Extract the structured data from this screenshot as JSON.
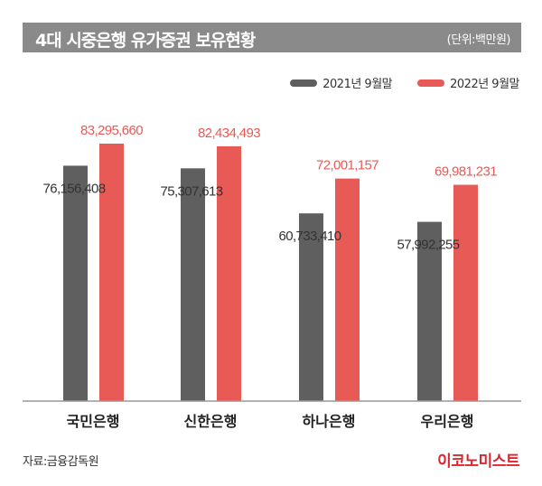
{
  "chart_data": {
    "type": "bar",
    "title": "4대 시중은행 유가증권 보유현황",
    "unit_label": "(단위:백만원)",
    "categories": [
      "국민은행",
      "신한은행",
      "하나은행",
      "우리은행"
    ],
    "series": [
      {
        "name": "2021년 9월말",
        "color": "#5f5f5f",
        "values": [
          76156408,
          75307613,
          60733410,
          57992255
        ],
        "labels": [
          "76,156,408",
          "75,307,613",
          "60,733,410",
          "57,992,255"
        ]
      },
      {
        "name": "2022년 9월말",
        "color": "#e85a56",
        "values": [
          83295660,
          82434493,
          72001157,
          69981231
        ],
        "labels": [
          "83,295,660",
          "82,434,493",
          "72,001,157",
          "69,981,231"
        ]
      }
    ],
    "ylim": [
      0,
      83295660
    ],
    "grid": false,
    "legend": "top-right"
  },
  "footer": {
    "source": "자료:금융감독원",
    "logo": "이코노미스트"
  }
}
